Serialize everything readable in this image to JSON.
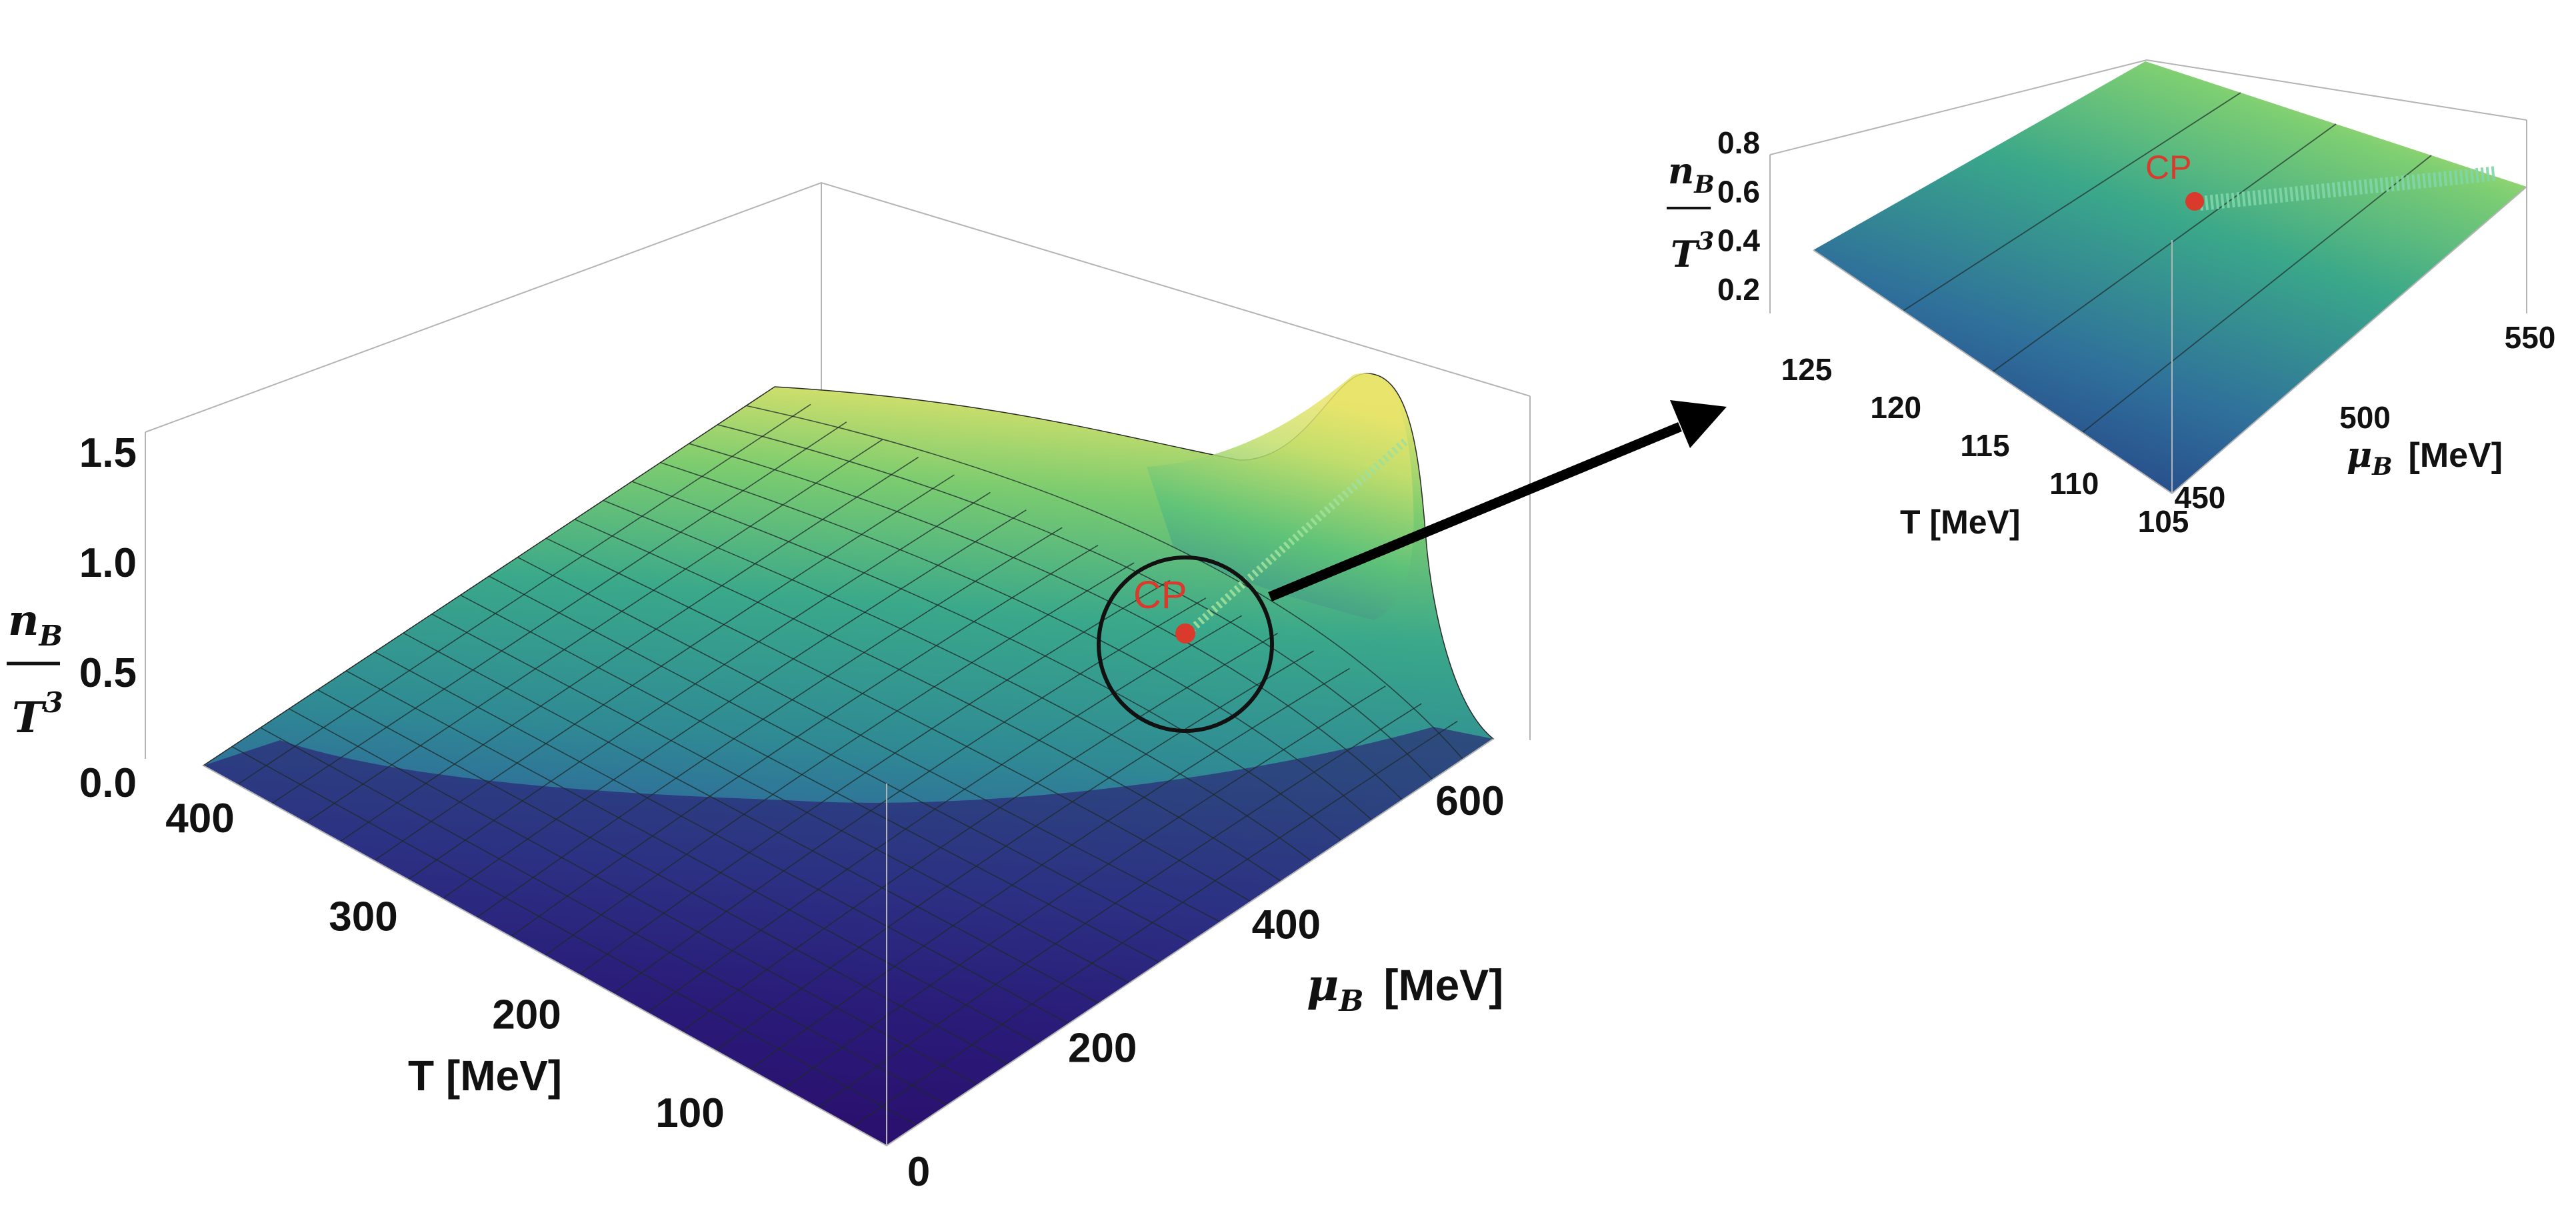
{
  "chart_data": [
    {
      "type": "surface",
      "x_label": "T [MeV]",
      "x_ticks": [
        "400",
        "300",
        "200",
        "100"
      ],
      "y_label_symbol": "μ",
      "y_label_sub": "B",
      "y_label_unit": "[MeV]",
      "y_ticks": [
        "0",
        "200",
        "400",
        "600"
      ],
      "z_label_num": "n",
      "z_label_num_sub": "B",
      "z_label_den": "T",
      "z_label_den_sup": "3",
      "z_ticks": [
        "0.0",
        "0.5",
        "1.0",
        "1.5"
      ],
      "xlim": [
        0,
        420
      ],
      "ylim": [
        0,
        650
      ],
      "zlim": [
        0,
        1.7
      ],
      "critical_point_label": "CP",
      "critical_point": {
        "T": 110,
        "muB": 510,
        "value": 0.55
      },
      "colormap": [
        "#2a0f6e",
        "#2f4f9a",
        "#2f7f96",
        "#3ea88a",
        "#8fd46a",
        "#e8e66a"
      ]
    },
    {
      "type": "surface",
      "x_label": "T [MeV]",
      "x_ticks": [
        "125",
        "120",
        "115",
        "110",
        "105"
      ],
      "y_label_symbol": "μ",
      "y_label_sub": "B",
      "y_label_unit": "[MeV]",
      "y_ticks": [
        "450",
        "500",
        "550"
      ],
      "z_label_num": "n",
      "z_label_num_sub": "B",
      "z_label_den": "T",
      "z_label_den_sup": "3",
      "z_ticks": [
        "0.2",
        "0.4",
        "0.6",
        "0.8"
      ],
      "xlim": [
        105,
        127
      ],
      "ylim": [
        440,
        560
      ],
      "zlim": [
        0.1,
        0.85
      ],
      "critical_point_label": "CP",
      "critical_point": {
        "T": 110,
        "muB": 510,
        "value": 0.55
      }
    }
  ]
}
